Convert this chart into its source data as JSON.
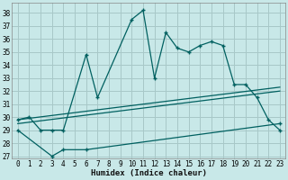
{
  "xlabel": "Humidex (Indice chaleur)",
  "bg_color": "#c8e8e8",
  "grid_color": "#a8c8c8",
  "line_color": "#006060",
  "xlim": [
    -0.5,
    23.5
  ],
  "ylim_min": 26.8,
  "ylim_max": 38.8,
  "yticks": [
    27,
    28,
    29,
    30,
    31,
    32,
    33,
    34,
    35,
    36,
    37,
    38
  ],
  "xticks": [
    0,
    1,
    2,
    3,
    4,
    5,
    6,
    7,
    8,
    9,
    10,
    11,
    12,
    13,
    14,
    15,
    16,
    17,
    18,
    19,
    20,
    21,
    22,
    23
  ],
  "curve_x": [
    0,
    1,
    2,
    3,
    4,
    6,
    7,
    10,
    11,
    12,
    13,
    14,
    15,
    16,
    17,
    18,
    19,
    20,
    21,
    22,
    23
  ],
  "curve_y": [
    29.8,
    30.0,
    29.0,
    29.0,
    29.0,
    34.8,
    31.5,
    37.5,
    38.2,
    33.0,
    36.5,
    35.3,
    35.0,
    35.5,
    35.8,
    35.5,
    32.5,
    32.5,
    31.5,
    29.8,
    29.0
  ],
  "lower_x": [
    0,
    3,
    4,
    6,
    23
  ],
  "lower_y": [
    29.0,
    27.0,
    27.5,
    27.5,
    29.5
  ],
  "trend1_x": [
    0,
    23
  ],
  "trend1_y": [
    29.8,
    32.3
  ],
  "trend2_x": [
    0,
    23
  ],
  "trend2_y": [
    29.5,
    32.0
  ]
}
